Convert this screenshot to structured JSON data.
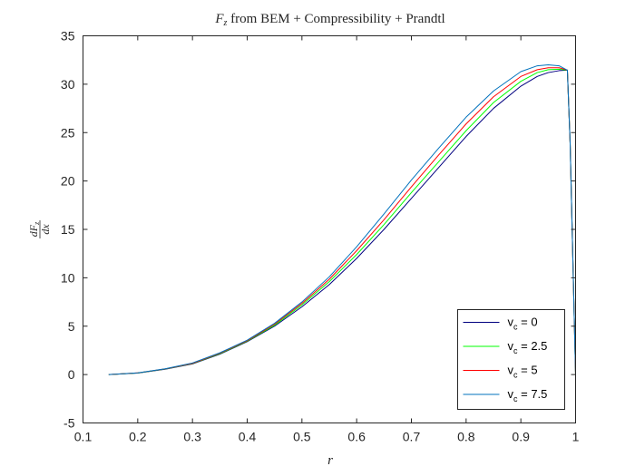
{
  "chart_data": {
    "type": "line",
    "title": {
      "prefix": "F",
      "prefix_sub": "z",
      "rest": " from BEM + Compressibility + Prandtl"
    },
    "xlabel": "r",
    "ylabel": {
      "numerator": "dF",
      "numerator_sub": "z",
      "denominator": "dx"
    },
    "xlim": [
      0.1,
      1.0
    ],
    "ylim": [
      -5,
      35
    ],
    "xticks": [
      0.1,
      0.2,
      0.3,
      0.4,
      0.5,
      0.6,
      0.7,
      0.8,
      0.9,
      1.0
    ],
    "xtick_labels": [
      "0.1",
      "0.2",
      "0.3",
      "0.4",
      "0.5",
      "0.6",
      "0.7",
      "0.8",
      "0.9",
      "1"
    ],
    "yticks": [
      -5,
      0,
      5,
      10,
      15,
      20,
      25,
      30,
      35
    ],
    "ytick_labels": [
      "-5",
      "0",
      "5",
      "10",
      "15",
      "20",
      "25",
      "30",
      "35"
    ],
    "grid": false,
    "legend": {
      "location": "bottom-right"
    },
    "x": [
      0.147,
      0.2,
      0.25,
      0.3,
      0.35,
      0.4,
      0.45,
      0.5,
      0.55,
      0.6,
      0.65,
      0.7,
      0.75,
      0.8,
      0.85,
      0.9,
      0.93,
      0.95,
      0.97,
      0.985,
      0.99,
      0.995,
      1.0
    ],
    "series": [
      {
        "name_main": "v",
        "name_sub": "c",
        "name_value": " = 0",
        "color": "#00007f",
        "values": [
          0,
          0.15,
          0.55,
          1.1,
          2.1,
          3.4,
          5.0,
          7.0,
          9.3,
          12.0,
          15.0,
          18.2,
          21.4,
          24.6,
          27.5,
          29.8,
          30.8,
          31.2,
          31.4,
          31.45,
          24.0,
          12.0,
          0
        ]
      },
      {
        "name_main": "v",
        "name_sub": "c",
        "name_value": " = 2.5",
        "color": "#00ff00",
        "values": [
          0,
          0.16,
          0.57,
          1.13,
          2.15,
          3.45,
          5.1,
          7.2,
          9.6,
          12.4,
          15.5,
          18.8,
          22.0,
          25.2,
          28.1,
          30.3,
          31.2,
          31.5,
          31.55,
          31.45,
          24.0,
          12.0,
          0
        ]
      },
      {
        "name_main": "v",
        "name_sub": "c",
        "name_value": " = 5",
        "color": "#ff0000",
        "values": [
          0,
          0.17,
          0.58,
          1.16,
          2.2,
          3.5,
          5.2,
          7.35,
          9.85,
          12.8,
          16.0,
          19.4,
          22.7,
          25.9,
          28.7,
          30.8,
          31.5,
          31.7,
          31.7,
          31.45,
          24.0,
          12.0,
          0
        ]
      },
      {
        "name_main": "v",
        "name_sub": "c",
        "name_value": " = 7.5",
        "color": "#0072bd",
        "values": [
          0,
          0.18,
          0.6,
          1.2,
          2.25,
          3.55,
          5.3,
          7.5,
          10.1,
          13.2,
          16.6,
          20.1,
          23.4,
          26.6,
          29.3,
          31.3,
          31.9,
          32.0,
          31.9,
          31.45,
          24.0,
          12.0,
          0
        ]
      }
    ]
  }
}
